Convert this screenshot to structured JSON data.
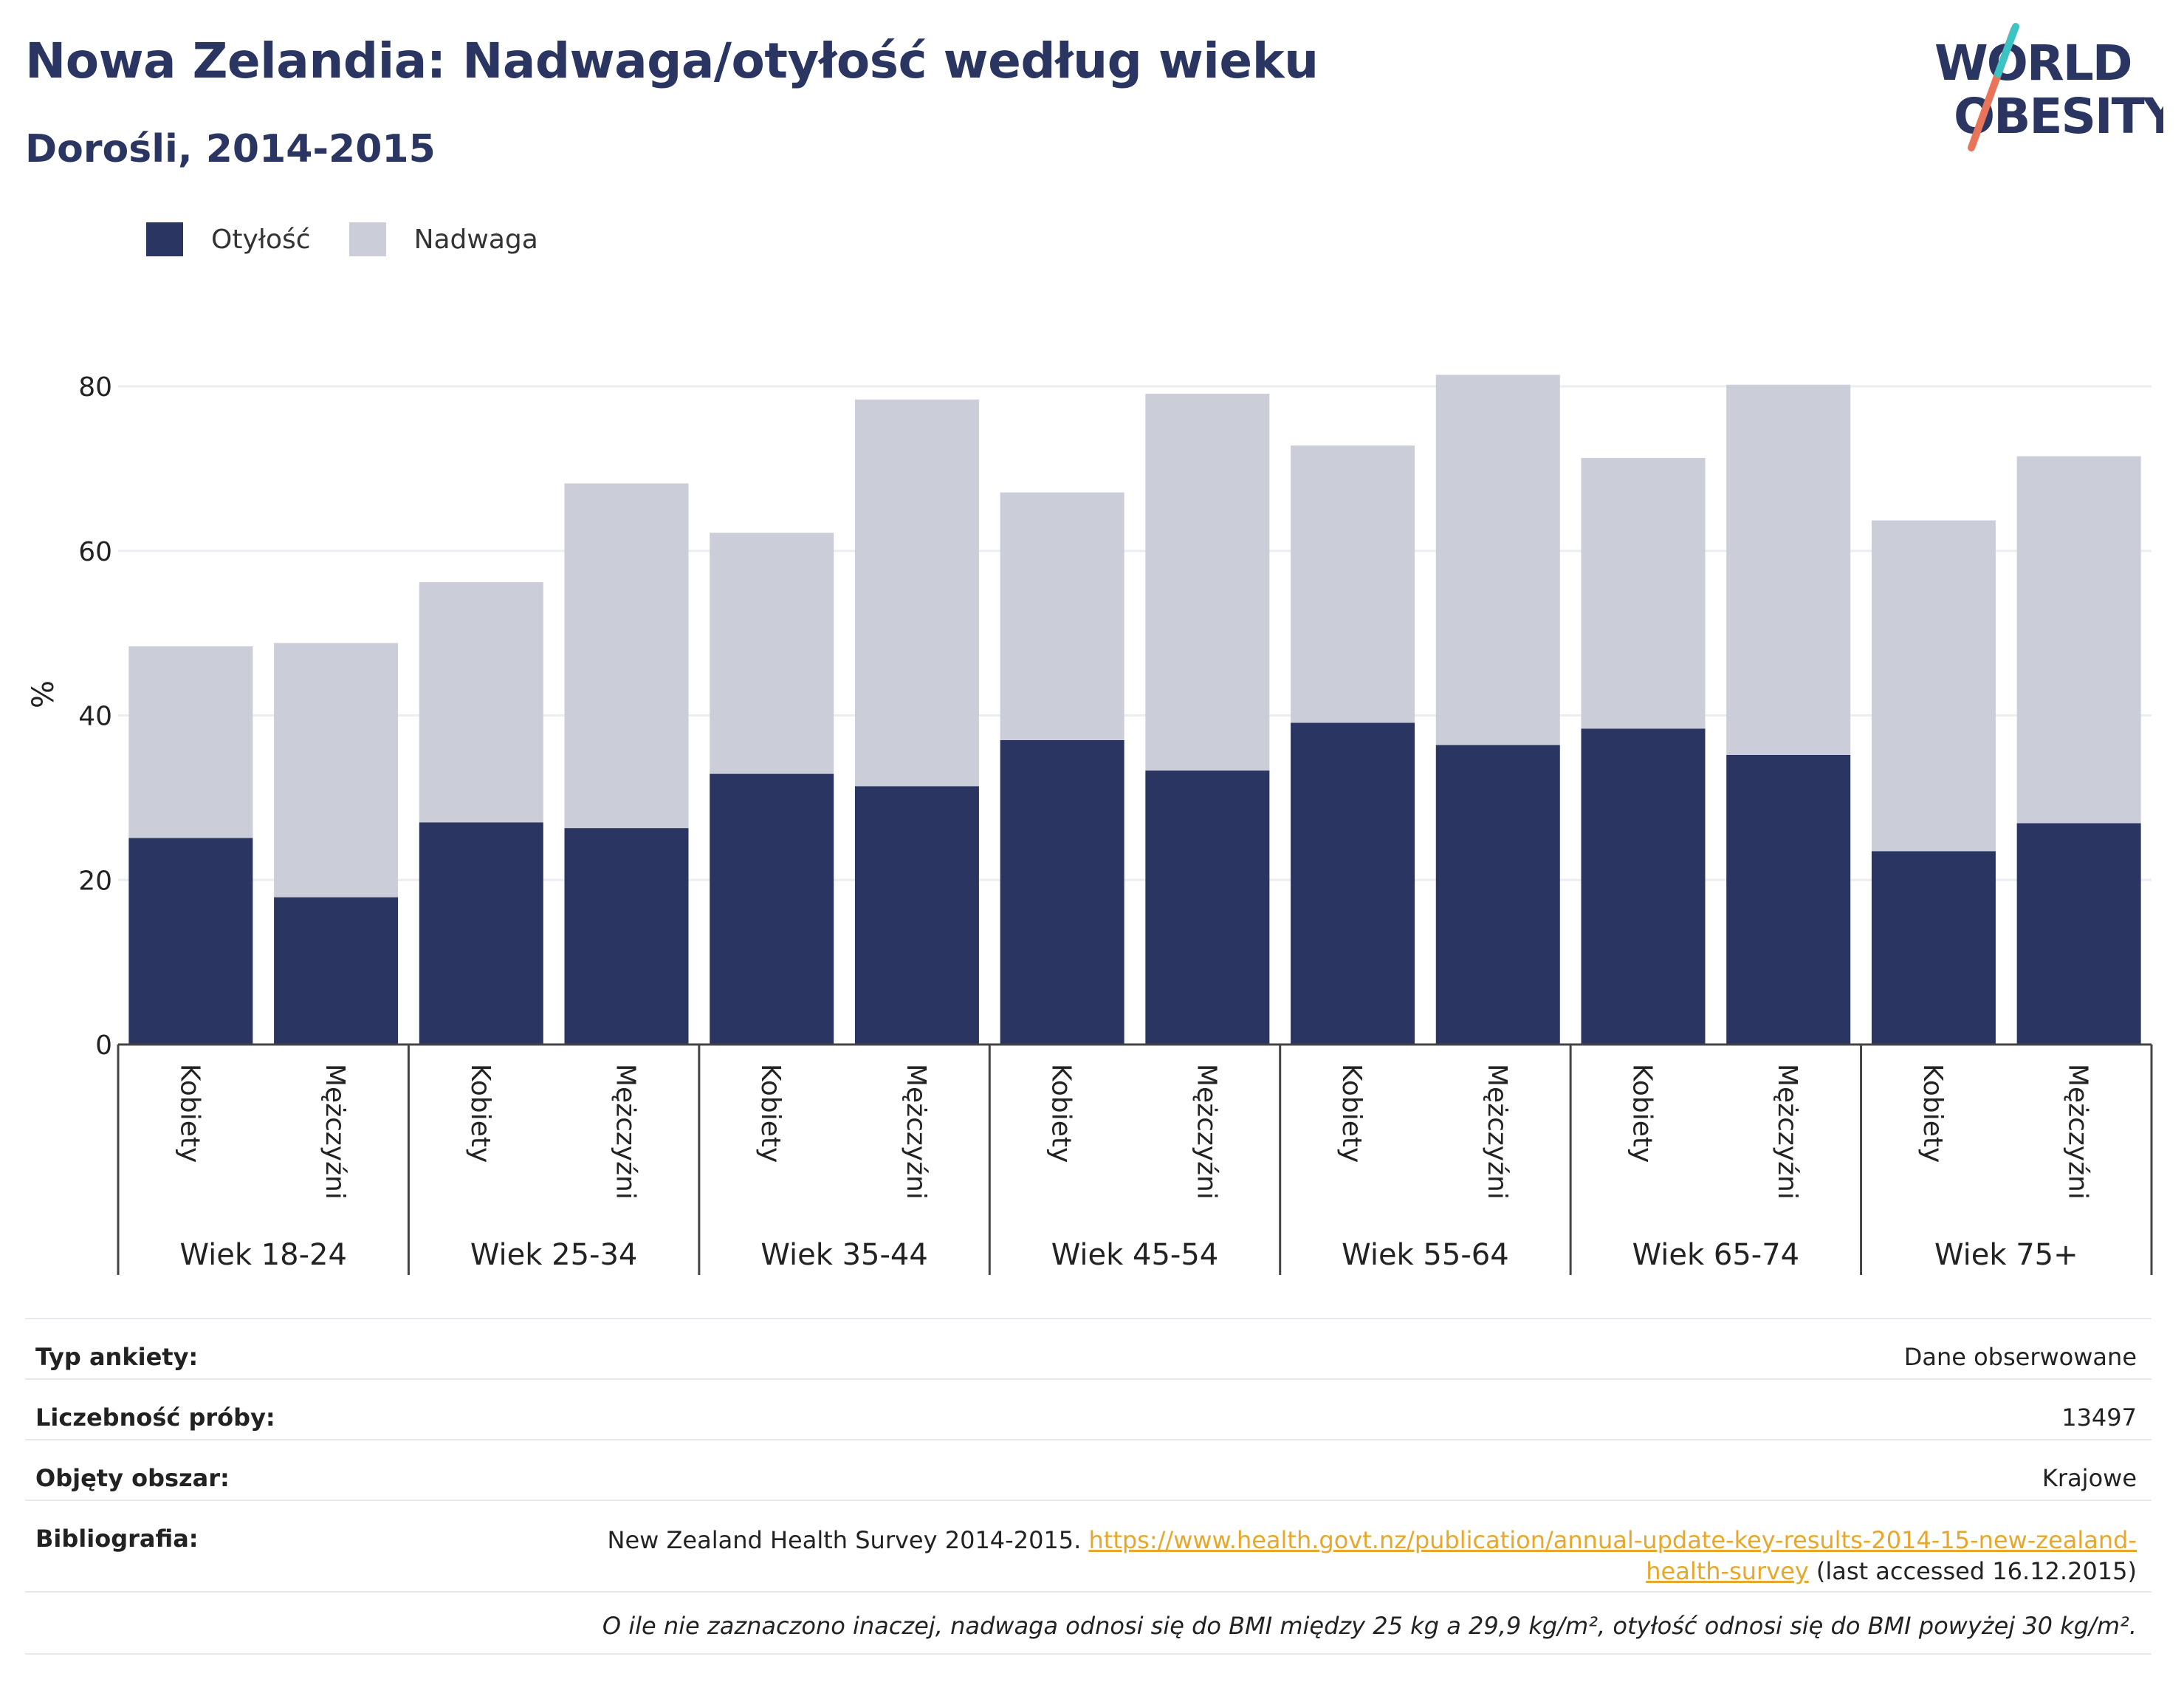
{
  "header": {
    "title": "Nowa Zelandia: Nadwaga/otyłość według wieku",
    "subtitle": "Dorośli, 2014-2015",
    "logo_text_line1": "WORLD",
    "logo_text_line2": "OBESITY"
  },
  "legend": [
    {
      "label": "Otyłość",
      "color": "#2a3561"
    },
    {
      "label": "Nadwaga",
      "color": "#cbcdd8"
    }
  ],
  "chart_data": {
    "type": "bar",
    "stacked": true,
    "ylabel": "%",
    "ylim": [
      0,
      90
    ],
    "yticks": [
      0,
      20,
      40,
      60,
      80
    ],
    "grid": true,
    "legend_position": "top-left",
    "groups": [
      "Wiek 18-24",
      "Wiek 25-34",
      "Wiek 35-44",
      "Wiek 45-54",
      "Wiek 55-64",
      "Wiek 65-74",
      "Wiek 75+"
    ],
    "subcategories": [
      "Kobiety",
      "Mężczyźni"
    ],
    "series": [
      {
        "name": "Otyłość",
        "color": "#2a3561",
        "values": [
          25.1,
          17.9,
          27.0,
          26.3,
          32.9,
          31.4,
          37.0,
          33.3,
          39.1,
          36.4,
          38.4,
          35.2,
          23.5,
          26.9
        ]
      },
      {
        "name": "Nadwaga",
        "color": "#cbcdd8",
        "values": [
          23.3,
          30.9,
          29.2,
          41.9,
          29.3,
          47.0,
          30.1,
          45.8,
          33.7,
          45.0,
          32.9,
          45.0,
          40.2,
          44.6
        ]
      }
    ]
  },
  "info": {
    "survey_label": "Typ ankiety:",
    "survey_value": "Dane obserwowane",
    "sample_label": "Liczebność próby:",
    "sample_value": "13497",
    "area_label": "Objęty obszar:",
    "area_value": "Krajowe",
    "bib_label": "Bibliografia:",
    "bib_text": "New Zealand Health Survey 2014-2015.",
    "bib_link_line1": "https://www.health.govt.nz/publication/annual-update-key-results-2014-15-new-zealand-",
    "bib_link_line2": "health-survey",
    "bib_suffix": "(last accessed 16.12.2015)",
    "note": "O ile nie zaznaczono inaczej, nadwaga odnosi się do BMI między 25 kg a 29,9 kg/m², otyłość odnosi się do BMI powyżej 30 kg/m²."
  }
}
